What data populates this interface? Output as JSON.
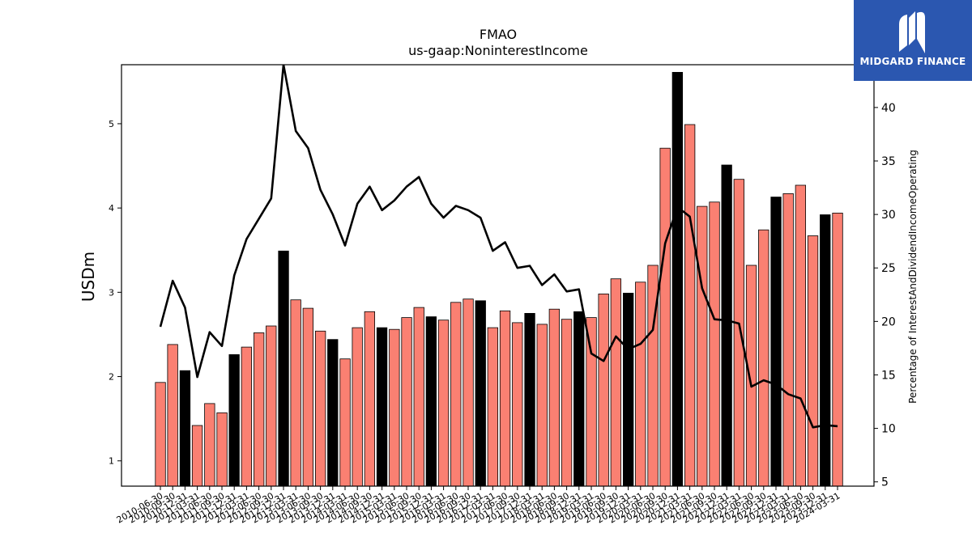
{
  "logo": {
    "text": "MIDGARD FINANCE"
  },
  "chart_data": {
    "type": "bar",
    "title": "FMAO",
    "subtitle": "us-gaap:NoninterestIncome",
    "ylabel": "USDm",
    "y2label": "Percentage of InterestAndDividendIncomeOperating",
    "ylim": [
      0.7,
      5.7
    ],
    "y2lim": [
      4.6,
      44
    ],
    "yticks": [
      1,
      2,
      3,
      4,
      5
    ],
    "y2ticks": [
      5,
      10,
      15,
      20,
      25,
      30,
      35,
      40
    ],
    "colors": {
      "bar": "#fa8072",
      "bar_q4": "#000000",
      "line": "#000000"
    },
    "categories": [
      "2010-06-30",
      "2010-09-30",
      "2010-12-31",
      "2011-03-31",
      "2011-06-30",
      "2011-09-30",
      "2011-12-31",
      "2012-03-31",
      "2012-06-30",
      "2012-09-30",
      "2012-12-31",
      "2013-03-31",
      "2013-06-30",
      "2013-09-30",
      "2013-12-31",
      "2014-03-31",
      "2014-06-30",
      "2014-09-30",
      "2014-12-31",
      "2015-03-31",
      "2015-06-30",
      "2015-09-30",
      "2015-12-31",
      "2016-03-31",
      "2016-06-30",
      "2016-09-30",
      "2016-12-31",
      "2017-03-31",
      "2017-06-30",
      "2017-09-30",
      "2017-12-31",
      "2018-03-31",
      "2018-06-30",
      "2018-09-30",
      "2018-12-31",
      "2019-03-31",
      "2019-06-30",
      "2019-09-30",
      "2019-12-31",
      "2020-03-31",
      "2020-06-30",
      "2020-09-30",
      "2020-12-31",
      "2021-03-31",
      "2021-06-30",
      "2021-09-30",
      "2021-12-31",
      "2022-03-31",
      "2022-06-30",
      "2022-09-30",
      "2022-12-31",
      "2023-03-31",
      "2023-06-30",
      "2023-09-30",
      "2023-12-31",
      "2024-03-31"
    ],
    "series": [
      {
        "type": "bar",
        "values": [
          1.93,
          2.38,
          2.07,
          1.42,
          1.68,
          1.57,
          2.26,
          2.35,
          2.52,
          2.6,
          3.49,
          2.91,
          2.81,
          2.54,
          2.44,
          2.21,
          2.58,
          2.77,
          2.58,
          2.56,
          2.7,
          2.82,
          2.71,
          2.67,
          2.88,
          2.92,
          2.9,
          2.58,
          2.78,
          2.64,
          2.75,
          2.62,
          2.8,
          2.68,
          2.77,
          2.7,
          2.98,
          3.16,
          2.99,
          3.12,
          3.32,
          4.71,
          5.61,
          4.99,
          4.02,
          4.07,
          4.51,
          4.34,
          3.32,
          3.74,
          4.13,
          4.17,
          4.27,
          3.67,
          3.92,
          3.94
        ]
      },
      {
        "type": "line",
        "axis": "right",
        "values": [
          19.5,
          23.8,
          21.3,
          14.8,
          19.0,
          17.7,
          24.3,
          27.7,
          29.6,
          31.5,
          44.0,
          37.8,
          36.2,
          32.3,
          30.0,
          27.1,
          31.0,
          32.6,
          30.4,
          31.3,
          32.6,
          33.5,
          31.0,
          29.7,
          30.8,
          30.4,
          29.7,
          26.6,
          27.4,
          25.0,
          25.2,
          23.4,
          24.4,
          22.8,
          23.0,
          17.0,
          16.3,
          18.6,
          17.4,
          17.9,
          19.2,
          27.3,
          30.7,
          29.8,
          23.1,
          20.2,
          20.1,
          19.8,
          13.9,
          14.5,
          14.1,
          13.2,
          12.8,
          10.1,
          10.3,
          10.2
        ]
      }
    ]
  }
}
